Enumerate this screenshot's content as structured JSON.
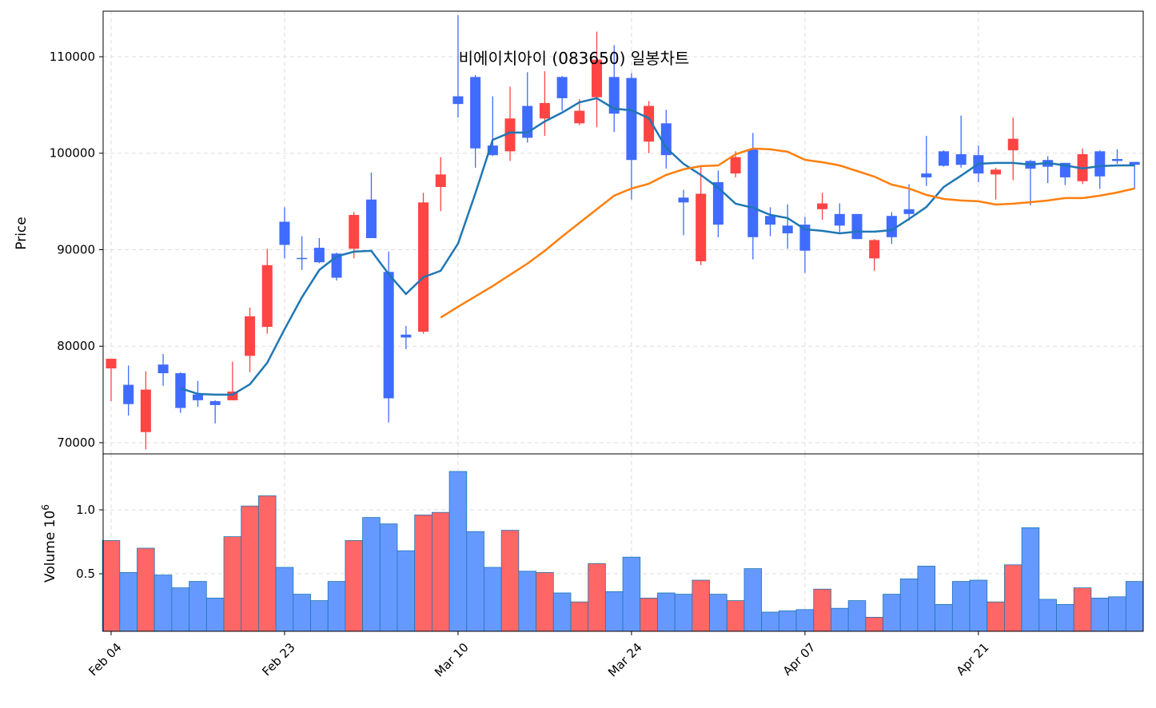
{
  "chart_data": [
    {
      "type": "candlestick",
      "title": "비에이치아이 (083650) 일봉차트",
      "ylabel": "Price",
      "categories": [
        "Feb 04",
        null,
        null,
        null,
        null,
        null,
        null,
        null,
        null,
        null,
        "Feb 23",
        null,
        null,
        null,
        null,
        null,
        null,
        null,
        null,
        null,
        "Mar 10",
        null,
        null,
        null,
        null,
        null,
        null,
        null,
        null,
        null,
        "Mar 24",
        null,
        null,
        null,
        null,
        null,
        null,
        null,
        null,
        null,
        "Apr 07",
        null,
        null,
        null,
        null,
        null,
        null,
        null,
        null,
        null,
        "Apr 21",
        null,
        null,
        null,
        null,
        null,
        null,
        null,
        null,
        null
      ],
      "open": [
        77700,
        76000,
        71100,
        78100,
        77200,
        75000,
        74300,
        74400,
        79000,
        82000,
        92900,
        89150,
        90200,
        89600,
        90100,
        95200,
        87700,
        81200,
        81500,
        96500,
        105900,
        107900,
        100800,
        100200,
        104900,
        103600,
        107900,
        103100,
        105800,
        107900,
        107800,
        101200,
        103100,
        95400,
        88800,
        97000,
        97900,
        100400,
        93500,
        92500,
        92600,
        94200,
        93700,
        93700,
        89100,
        93500,
        94200,
        97900,
        100200,
        99900,
        99800,
        97800,
        100300,
        99200,
        99300,
        99000,
        97100,
        100200,
        99400,
        99100
      ],
      "high": [
        78700,
        78000,
        77400,
        79200,
        77300,
        76400,
        74400,
        78400,
        84000,
        90100,
        94400,
        91400,
        91200,
        89700,
        93900,
        98000,
        89800,
        82100,
        95900,
        99600,
        114300,
        108100,
        105900,
        106900,
        108400,
        108500,
        108000,
        105600,
        112600,
        111200,
        108300,
        105400,
        104500,
        96200,
        98700,
        98200,
        100200,
        102100,
        94400,
        94700,
        93400,
        95900,
        94800,
        93700,
        91100,
        93900,
        96800,
        101800,
        100300,
        103900,
        100800,
        98500,
        103700,
        99300,
        99700,
        99000,
        100500,
        100300,
        100400,
        99100
      ],
      "low": [
        74300,
        72800,
        69300,
        75900,
        73100,
        73700,
        72000,
        74400,
        77300,
        81300,
        89100,
        87900,
        88600,
        86800,
        89100,
        91200,
        72100,
        79700,
        81300,
        94000,
        103700,
        98500,
        99700,
        99200,
        101100,
        101800,
        104400,
        102900,
        102700,
        102200,
        95200,
        100000,
        98400,
        91500,
        88400,
        91300,
        97500,
        89000,
        91400,
        90100,
        87600,
        93100,
        91800,
        91100,
        87800,
        90600,
        93000,
        96600,
        98600,
        98500,
        97000,
        95200,
        97200,
        94600,
        96900,
        96700,
        96800,
        96300,
        98900,
        96300
      ],
      "close": [
        78700,
        74000,
        75500,
        77200,
        73600,
        74400,
        73900,
        75300,
        83100,
        88400,
        90500,
        89050,
        88700,
        87100,
        93600,
        91200,
        74600,
        80900,
        94900,
        97800,
        105100,
        100500,
        99800,
        103600,
        101600,
        105200,
        105700,
        104400,
        109700,
        104100,
        99300,
        104900,
        99800,
        94900,
        95800,
        92600,
        99600,
        91300,
        92600,
        91700,
        89900,
        94800,
        92500,
        91100,
        91000,
        91300,
        93700,
        97500,
        98700,
        98800,
        97900,
        98300,
        101500,
        98400,
        98600,
        97500,
        99900,
        97600,
        99200,
        98800
      ],
      "up_color": "#ff4444",
      "down_color": "#3f6bff",
      "series": [
        {
          "color": "#1f77b4",
          "values": [
            null,
            null,
            null,
            null,
            75640,
            75060,
            74980,
            74980,
            76050,
            78290,
            81770,
            85080,
            87900,
            89300,
            89800,
            89880,
            87480,
            85410,
            87150,
            87810,
            90630,
            95840,
            101390,
            102140,
            102140,
            103290,
            104210,
            105280,
            105700,
            104620,
            104450,
            103630,
            100560,
            98900,
            97750,
            96420,
            94770,
            94350,
            93610,
            93280,
            92120,
            91950,
            91700,
            91870,
            91870,
            92030,
            93190,
            94430,
            96510,
            97680,
            98900,
            98990,
            98990,
            98820,
            98990,
            98740,
            98410,
            98660,
            98740,
            98740
          ]
        },
        {
          "color": "#ff7f0e",
          "values": [
            null,
            null,
            null,
            null,
            null,
            null,
            null,
            null,
            null,
            null,
            null,
            null,
            null,
            null,
            null,
            null,
            null,
            null,
            null,
            82970,
            84090,
            85160,
            86240,
            87400,
            88560,
            89880,
            91370,
            92780,
            94190,
            95600,
            96340,
            96840,
            97750,
            98330,
            98660,
            98740,
            99900,
            100480,
            100400,
            100150,
            99320,
            99070,
            98740,
            98160,
            97580,
            96750,
            96340,
            95680,
            95260,
            95100,
            95020,
            94680,
            94770,
            94930,
            95100,
            95350,
            95350,
            95600,
            95930,
            96340
          ]
        }
      ],
      "xlim": [
        -0.46,
        59.5
      ],
      "ylim": [
        68840,
        114720
      ],
      "yticks": [
        70000,
        80000,
        90000,
        100000,
        110000
      ],
      "grid": true
    },
    {
      "type": "bar",
      "ylabel": "Volume",
      "offset_base": "10",
      "offset_exponent": "6",
      "values": [
        0.76,
        0.51,
        0.7,
        0.49,
        0.39,
        0.44,
        0.31,
        0.79,
        1.03,
        1.11,
        0.55,
        0.34,
        0.29,
        0.44,
        0.76,
        0.94,
        0.89,
        0.68,
        0.96,
        0.98,
        1.3,
        0.83,
        0.55,
        0.84,
        0.52,
        0.51,
        0.35,
        0.28,
        0.58,
        0.36,
        0.63,
        0.31,
        0.35,
        0.34,
        0.45,
        0.34,
        0.29,
        0.54,
        0.2,
        0.21,
        0.22,
        0.38,
        0.23,
        0.29,
        0.16,
        0.34,
        0.46,
        0.56,
        0.26,
        0.44,
        0.45,
        0.28,
        0.57,
        0.86,
        0.3,
        0.26,
        0.39,
        0.31,
        0.32,
        0.44
      ],
      "up_color": "#ff6666",
      "down_color": "#6699ff",
      "edge_color": "#1f77b4",
      "ylim": [
        0.05,
        1.4375
      ],
      "yticks": [
        0.5,
        {
          "value": 1,
          "label": "1.0"
        }
      ],
      "grid": true
    }
  ]
}
